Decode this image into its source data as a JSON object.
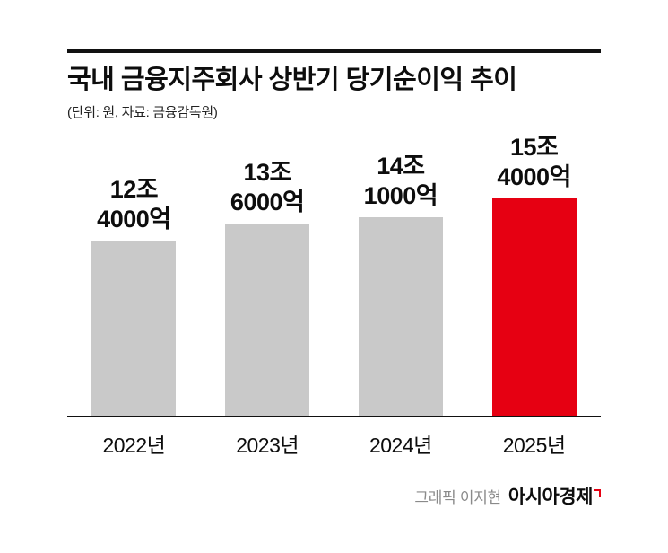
{
  "header": {
    "title": "국내 금융지주회사 상반기 당기순이익 추이",
    "subtitle": "(단위: 원, 자료: 금융감독원)"
  },
  "chart_data": {
    "type": "bar",
    "title": "국내 금융지주회사 상반기 당기순이익 추이",
    "unit_note": "(단위: 원, 자료: 금융감독원)",
    "categories": [
      "2022년",
      "2023년",
      "2024년",
      "2025년"
    ],
    "values": [
      12.4,
      13.6,
      14.1,
      15.4
    ],
    "value_unit": "조 원",
    "value_labels": [
      "12조\n4000억",
      "13조\n6000억",
      "14조\n1000억",
      "15조\n4000억"
    ],
    "highlight_index": 3,
    "ylim": [
      0,
      16
    ],
    "grid": false,
    "legend": "none",
    "colors": {
      "bar_default": "#c9c9c9",
      "bar_highlight": "#e60012"
    }
  },
  "footer": {
    "credit": "그래픽 이지현",
    "brand": "아시아경제",
    "brand_mark_color": "#e60012"
  }
}
